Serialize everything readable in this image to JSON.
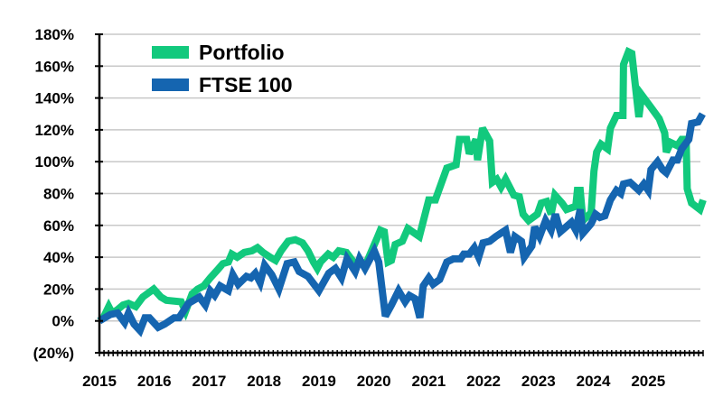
{
  "chart_data": {
    "type": "line",
    "title": "",
    "xlabel": "",
    "ylabel": "",
    "ylim": [
      -20,
      180
    ],
    "xlim": [
      2015,
      2026
    ],
    "grid": true,
    "legend_position": "top-left",
    "y_ticks": [
      {
        "value": -20,
        "label": "(20%)"
      },
      {
        "value": 0,
        "label": "0%"
      },
      {
        "value": 20,
        "label": "20%"
      },
      {
        "value": 40,
        "label": "40%"
      },
      {
        "value": 60,
        "label": "60%"
      },
      {
        "value": 80,
        "label": "80%"
      },
      {
        "value": 100,
        "label": "100%"
      },
      {
        "value": 120,
        "label": "120%"
      },
      {
        "value": 140,
        "label": "140%"
      },
      {
        "value": 160,
        "label": "160%"
      },
      {
        "value": 180,
        "label": "180%"
      }
    ],
    "x_ticks": [
      {
        "value": 2015,
        "label": "2015"
      },
      {
        "value": 2016,
        "label": "2016"
      },
      {
        "value": 2017,
        "label": "2017"
      },
      {
        "value": 2018,
        "label": "2018"
      },
      {
        "value": 2019,
        "label": "2019"
      },
      {
        "value": 2020,
        "label": "2020"
      },
      {
        "value": 2021,
        "label": "2021"
      },
      {
        "value": 2022,
        "label": "2022"
      },
      {
        "value": 2023,
        "label": "2023"
      },
      {
        "value": 2024,
        "label": "2024"
      },
      {
        "value": 2025,
        "label": "2025"
      }
    ],
    "series": [
      {
        "name": "Portfolio",
        "color": "#12C97D",
        "points": [
          [
            2015.0,
            0
          ],
          [
            2015.07,
            2
          ],
          [
            2015.17,
            9
          ],
          [
            2015.23,
            5
          ],
          [
            2015.33,
            7
          ],
          [
            2015.43,
            10
          ],
          [
            2015.53,
            11
          ],
          [
            2015.66,
            9
          ],
          [
            2015.79,
            15
          ],
          [
            2015.99,
            20
          ],
          [
            2016.12,
            15
          ],
          [
            2016.22,
            13
          ],
          [
            2016.49,
            12
          ],
          [
            2016.57,
            6
          ],
          [
            2016.69,
            17
          ],
          [
            2016.79,
            20
          ],
          [
            2016.9,
            22
          ],
          [
            2017.02,
            27
          ],
          [
            2017.15,
            32
          ],
          [
            2017.25,
            36
          ],
          [
            2017.35,
            37
          ],
          [
            2017.41,
            42
          ],
          [
            2017.51,
            40
          ],
          [
            2017.64,
            43
          ],
          [
            2017.78,
            44
          ],
          [
            2017.88,
            46
          ],
          [
            2017.98,
            43
          ],
          [
            2018.11,
            40
          ],
          [
            2018.21,
            38
          ],
          [
            2018.31,
            44
          ],
          [
            2018.44,
            50
          ],
          [
            2018.57,
            51
          ],
          [
            2018.7,
            49
          ],
          [
            2018.8,
            44
          ],
          [
            2018.9,
            37
          ],
          [
            2018.97,
            33
          ],
          [
            2019.03,
            37
          ],
          [
            2019.17,
            42
          ],
          [
            2019.26,
            40
          ],
          [
            2019.36,
            44
          ],
          [
            2019.5,
            43
          ],
          [
            2019.63,
            37
          ],
          [
            2019.73,
            36
          ],
          [
            2019.86,
            36
          ],
          [
            2019.96,
            44
          ],
          [
            2020.06,
            52
          ],
          [
            2020.12,
            57
          ],
          [
            2020.19,
            56
          ],
          [
            2020.26,
            37
          ],
          [
            2020.32,
            38
          ],
          [
            2020.39,
            48
          ],
          [
            2020.52,
            50
          ],
          [
            2020.62,
            58
          ],
          [
            2020.83,
            53
          ],
          [
            2021.0,
            76
          ],
          [
            2021.12,
            76
          ],
          [
            2021.33,
            96
          ],
          [
            2021.5,
            98
          ],
          [
            2021.56,
            114
          ],
          [
            2021.69,
            114
          ],
          [
            2021.74,
            105
          ],
          [
            2021.86,
            114
          ],
          [
            2021.89,
            101
          ],
          [
            2021.98,
            121
          ],
          [
            2022.11,
            113
          ],
          [
            2022.16,
            87
          ],
          [
            2022.24,
            89
          ],
          [
            2022.32,
            84
          ],
          [
            2022.4,
            89
          ],
          [
            2022.55,
            79
          ],
          [
            2022.65,
            78
          ],
          [
            2022.72,
            67
          ],
          [
            2022.82,
            63
          ],
          [
            2022.98,
            67
          ],
          [
            2023.05,
            74
          ],
          [
            2023.15,
            75
          ],
          [
            2023.23,
            67
          ],
          [
            2023.3,
            79
          ],
          [
            2023.43,
            74
          ],
          [
            2023.51,
            70
          ],
          [
            2023.68,
            72
          ],
          [
            2023.71,
            82
          ],
          [
            2023.76,
            82
          ],
          [
            2023.81,
            63
          ],
          [
            2023.96,
            68
          ],
          [
            2024.01,
            94
          ],
          [
            2024.06,
            106
          ],
          [
            2024.14,
            111
          ],
          [
            2024.26,
            108
          ],
          [
            2024.31,
            121
          ],
          [
            2024.42,
            129
          ],
          [
            2024.54,
            129
          ],
          [
            2024.55,
            161
          ],
          [
            2024.64,
            169
          ],
          [
            2024.7,
            168
          ],
          [
            2024.83,
            128
          ],
          [
            2024.88,
            142
          ],
          [
            2025.03,
            135
          ],
          [
            2025.2,
            127
          ],
          [
            2025.3,
            118
          ],
          [
            2025.33,
            106
          ],
          [
            2025.41,
            112
          ],
          [
            2025.53,
            110
          ],
          [
            2025.61,
            114
          ],
          [
            2025.69,
            114
          ],
          [
            2025.71,
            83
          ],
          [
            2025.79,
            74
          ],
          [
            2025.94,
            70
          ],
          [
            2026.0,
            76
          ]
        ]
      },
      {
        "name": "FTSE 100",
        "color": "#1565B0",
        "points": [
          [
            2015.0,
            0
          ],
          [
            2015.2,
            4
          ],
          [
            2015.33,
            5
          ],
          [
            2015.46,
            -1
          ],
          [
            2015.53,
            5
          ],
          [
            2015.63,
            -2
          ],
          [
            2015.74,
            -6
          ],
          [
            2015.83,
            2
          ],
          [
            2015.91,
            2
          ],
          [
            2016.07,
            -4
          ],
          [
            2016.19,
            -2
          ],
          [
            2016.36,
            2
          ],
          [
            2016.45,
            2
          ],
          [
            2016.62,
            11
          ],
          [
            2016.82,
            15
          ],
          [
            2016.93,
            10
          ],
          [
            2017.02,
            19
          ],
          [
            2017.1,
            16
          ],
          [
            2017.2,
            22
          ],
          [
            2017.35,
            19
          ],
          [
            2017.43,
            29
          ],
          [
            2017.53,
            23
          ],
          [
            2017.68,
            28
          ],
          [
            2017.76,
            27
          ],
          [
            2017.84,
            30
          ],
          [
            2017.93,
            24
          ],
          [
            2018.01,
            35
          ],
          [
            2018.14,
            29
          ],
          [
            2018.27,
            20
          ],
          [
            2018.42,
            36
          ],
          [
            2018.55,
            37
          ],
          [
            2018.64,
            31
          ],
          [
            2018.8,
            28
          ],
          [
            2019.0,
            19
          ],
          [
            2019.18,
            30
          ],
          [
            2019.3,
            33
          ],
          [
            2019.41,
            27
          ],
          [
            2019.51,
            39
          ],
          [
            2019.66,
            31
          ],
          [
            2019.74,
            39
          ],
          [
            2019.84,
            33
          ],
          [
            2020.01,
            44
          ],
          [
            2020.09,
            37
          ],
          [
            2020.21,
            3
          ],
          [
            2020.32,
            10
          ],
          [
            2020.45,
            19
          ],
          [
            2020.57,
            12
          ],
          [
            2020.65,
            16
          ],
          [
            2020.75,
            14
          ],
          [
            2020.84,
            2
          ],
          [
            2020.9,
            22
          ],
          [
            2021.0,
            27
          ],
          [
            2021.08,
            23
          ],
          [
            2021.2,
            26
          ],
          [
            2021.33,
            37
          ],
          [
            2021.45,
            39
          ],
          [
            2021.58,
            39
          ],
          [
            2021.64,
            42
          ],
          [
            2021.74,
            42
          ],
          [
            2021.83,
            46
          ],
          [
            2021.91,
            40
          ],
          [
            2021.99,
            49
          ],
          [
            2022.11,
            50
          ],
          [
            2022.22,
            53
          ],
          [
            2022.4,
            57
          ],
          [
            2022.49,
            43
          ],
          [
            2022.57,
            53
          ],
          [
            2022.69,
            50
          ],
          [
            2022.74,
            40
          ],
          [
            2022.88,
            47
          ],
          [
            2022.93,
            59
          ],
          [
            2023.02,
            53
          ],
          [
            2023.13,
            63
          ],
          [
            2023.23,
            57
          ],
          [
            2023.31,
            67
          ],
          [
            2023.4,
            56
          ],
          [
            2023.6,
            62
          ],
          [
            2023.68,
            57
          ],
          [
            2023.76,
            70
          ],
          [
            2023.81,
            55
          ],
          [
            2023.96,
            61
          ],
          [
            2024.04,
            67
          ],
          [
            2024.12,
            65
          ],
          [
            2024.21,
            66
          ],
          [
            2024.31,
            76
          ],
          [
            2024.42,
            82
          ],
          [
            2024.5,
            80
          ],
          [
            2024.55,
            86
          ],
          [
            2024.67,
            87
          ],
          [
            2024.83,
            82
          ],
          [
            2024.92,
            86
          ],
          [
            2025.0,
            82
          ],
          [
            2025.05,
            95
          ],
          [
            2025.17,
            100
          ],
          [
            2025.26,
            95
          ],
          [
            2025.33,
            93
          ],
          [
            2025.45,
            101
          ],
          [
            2025.53,
            101
          ],
          [
            2025.61,
            108
          ],
          [
            2025.74,
            114
          ],
          [
            2025.79,
            124
          ],
          [
            2025.91,
            125
          ],
          [
            2025.99,
            130
          ]
        ]
      }
    ]
  }
}
